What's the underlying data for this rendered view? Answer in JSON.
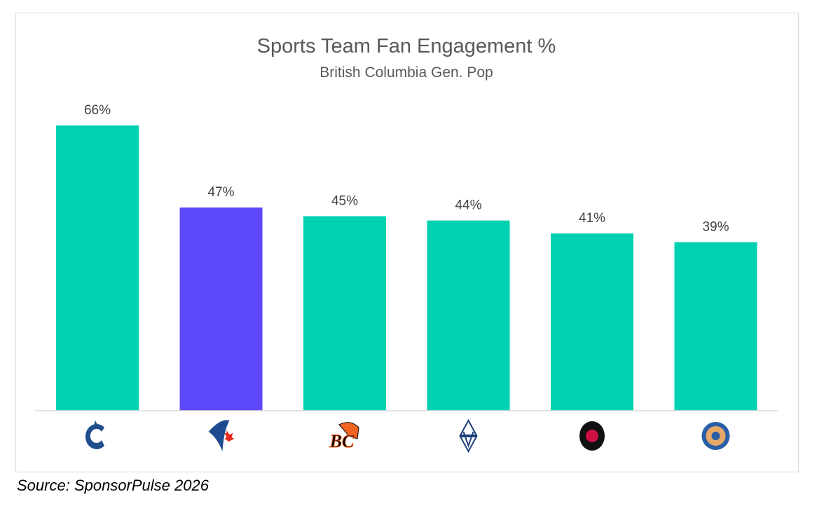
{
  "chart_data": {
    "type": "bar",
    "title": "Sports Team Fan Engagement %",
    "subtitle": "British Columbia Gen. Pop",
    "categories": [
      "canucks-logo",
      "blue-jays-logo",
      "bc-lions-logo",
      "whitecaps-fc-logo",
      "raptors-logo",
      "goldeneyes-logo"
    ],
    "values": [
      66,
      47,
      45,
      44,
      41,
      39
    ],
    "data_labels": [
      "66%",
      "47%",
      "45%",
      "44%",
      "41%",
      "39%"
    ],
    "bar_colors": [
      "#00D1B2",
      "#5E48FC",
      "#00D1B2",
      "#00D1B2",
      "#00D1B2",
      "#00D1B2"
    ],
    "ylim": [
      0,
      66
    ],
    "grid": false,
    "legend": "none",
    "xlabel": "",
    "ylabel": ""
  },
  "source": "Source: SponsorPulse 2026"
}
